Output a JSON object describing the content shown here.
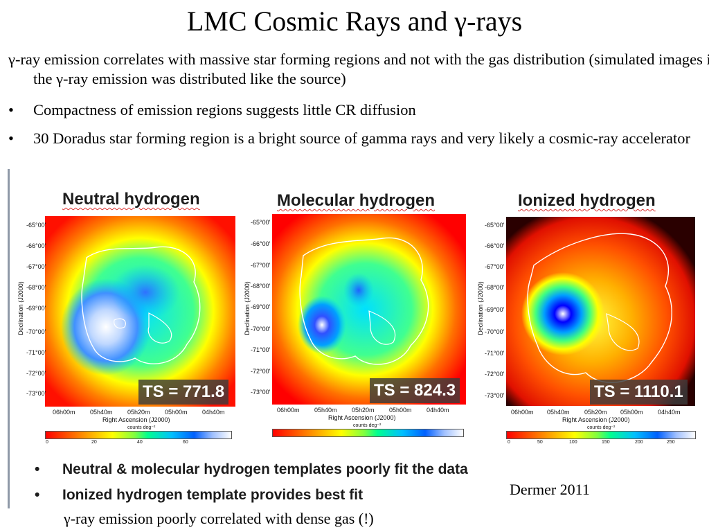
{
  "slide": {
    "title": "LMC Cosmic Rays and γ-rays",
    "bullets": [
      "γ-ray emission correlates with massive star forming  regions and not with the gas distribution (simulated images if the γ-ray emission was distributed like the source)",
      "Compactness of emission regions suggests little CR  diffusion",
      "30 Doradus star forming region is a bright source of gamma rays and very likely a cosmic-ray accelerator"
    ],
    "bullet_glyph": "•",
    "citation": "Dermer 2011",
    "footnote": "γ-ray emission poorly correlated with dense gas (!)"
  },
  "figure": {
    "panels": [
      {
        "title": "Neutral hydrogen",
        "ts": "TS = 771.8",
        "colorbar_ticks": [
          "0",
          "20",
          "40",
          "60"
        ]
      },
      {
        "title": "Molecular hydrogen",
        "ts": "TS = 824.3",
        "colorbar_ticks": []
      },
      {
        "title": "Ionized hydrogen",
        "ts": "TS = 1110.1",
        "colorbar_ticks": [
          "0",
          "50",
          "100",
          "150",
          "200",
          "250"
        ]
      }
    ],
    "y_ticks": [
      "-65°00'",
      "-66°00'",
      "-67°00'",
      "-68°00'",
      "-69°00'",
      "-70°00'",
      "-71°00'",
      "-72°00'",
      "-73°00'"
    ],
    "x_ticks": [
      "06h00m",
      "05h40m",
      "05h20m",
      "05h00m",
      "04h40m"
    ],
    "y_label": "Declination (J2000)",
    "x_label": "Right Ascension (J2000)",
    "colorbar_label": "counts deg⁻²",
    "summary_bullets": [
      "Neutral & molecular hydrogen templates poorly fit the data",
      "Ionized hydrogen template provides best fit"
    ]
  }
}
